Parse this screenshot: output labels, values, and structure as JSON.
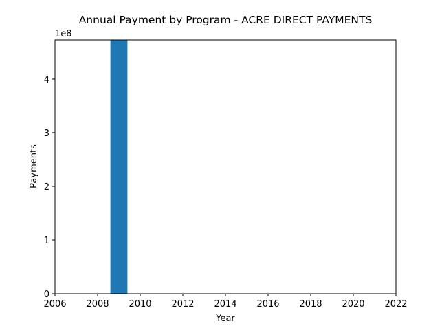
{
  "chart_data": {
    "type": "bar",
    "title": "Annual Payment by Program - ACRE DIRECT PAYMENTS",
    "xlabel": "Year",
    "ylabel": "Payments",
    "y_offset_label": "1e8",
    "xlim": [
      2006,
      2022
    ],
    "ylim": [
      0,
      4.73
    ],
    "y_scale_factor": 100000000,
    "x_ticks": [
      2006,
      2008,
      2010,
      2012,
      2014,
      2016,
      2018,
      2020,
      2022
    ],
    "y_ticks": [
      0,
      1,
      2,
      3,
      4
    ],
    "grid": false,
    "bar_color": "#1f77b4",
    "bar_width_years": 0.8,
    "x": [
      2009
    ],
    "values": [
      4.73
    ]
  }
}
